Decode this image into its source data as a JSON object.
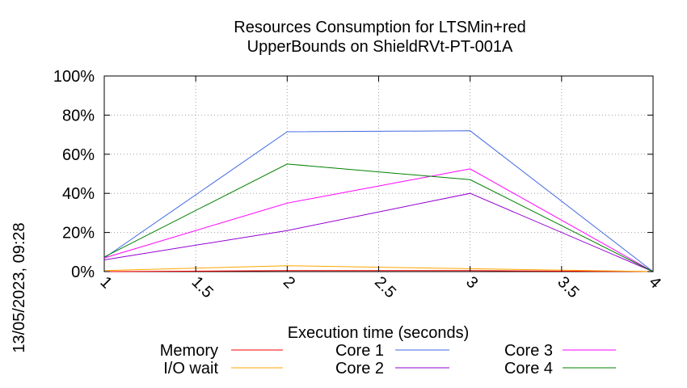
{
  "side_label": "13/05/2023, 09:28",
  "chart_data": {
    "type": "line",
    "title_lines": [
      "Resources Consumption for LTSMin+red",
      "UpperBounds on ShieldRVt-PT-001A"
    ],
    "xlabel": "Execution time (seconds)",
    "ylabel": "",
    "xlim": [
      1,
      4
    ],
    "ylim": [
      0,
      100
    ],
    "x_ticks": [
      1,
      1.5,
      2,
      2.5,
      3,
      3.5,
      4
    ],
    "x_tick_labels": [
      "1",
      "1.5",
      "2",
      "2.5",
      "3",
      "3.5",
      "4"
    ],
    "y_ticks": [
      0,
      20,
      40,
      60,
      80,
      100
    ],
    "y_tick_labels": [
      "0%",
      "20%",
      "40%",
      "60%",
      "80%",
      "100%"
    ],
    "grid": true,
    "legend_position": "bottom",
    "x": [
      1,
      2,
      3,
      4
    ],
    "series": [
      {
        "name": "Memory",
        "color": "#ff0000",
        "values": [
          0,
          0.5,
          0.5,
          0
        ]
      },
      {
        "name": "I/O wait",
        "color": "#ffa500",
        "values": [
          0.5,
          3,
          1.5,
          0
        ]
      },
      {
        "name": "Core 1",
        "color": "#4169e1",
        "values": [
          7,
          71.5,
          72,
          0
        ]
      },
      {
        "name": "Core 2",
        "color": "#9400d3",
        "values": [
          6,
          21,
          40,
          0
        ]
      },
      {
        "name": "Core 3",
        "color": "#ff00ff",
        "values": [
          7,
          35,
          52.5,
          0
        ]
      },
      {
        "name": "Core 4",
        "color": "#008000",
        "values": [
          7.5,
          55,
          47,
          0
        ]
      }
    ]
  }
}
